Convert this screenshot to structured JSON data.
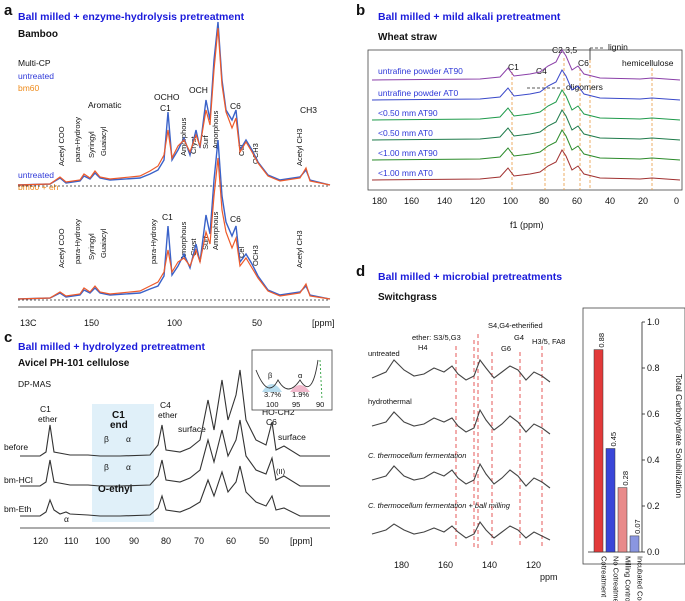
{
  "panels": {
    "a": {
      "letter": "a",
      "title": "Ball milled + enzyme-hydrolysis pretreatment",
      "subtitle": "Bamboo",
      "method": "Multi-CP",
      "legend1": [
        "untreated",
        "bm60"
      ],
      "legend2": [
        "untreated",
        "bm60 + eh"
      ],
      "peaks_top": [
        "Acetyl COO",
        "para-Hydroxy",
        "Syringyl",
        "Guaiacyl",
        "Aromatic",
        "OCHO",
        "C1",
        "Amorphous",
        "Cryst",
        "Surf",
        "Amorphous",
        "OCH",
        "C6",
        "Cel",
        "OCH3",
        "CH3",
        "Acetyl CH3"
      ],
      "peaks_bottom": [
        "Acetyl COO",
        "para-Hydroxy",
        "Syringyl",
        "Guaiacyl",
        "para-Hydroxy",
        "C1",
        "Amorphous",
        "Cryst",
        "Surf",
        "Amorphous",
        "C6",
        "Cel",
        "OCH3",
        "Acetyl CH3"
      ],
      "axis_prefix": "13C",
      "ticks": [
        "150",
        "100",
        "50"
      ],
      "unit": "[ppm]",
      "colors": {
        "untreated": "#3a62c9",
        "treated": "#ee5a2a"
      }
    },
    "b": {
      "letter": "b",
      "title": "Ball milled + mild alkali pretreatment",
      "subtitle": "Wheat straw",
      "series": [
        "untrafine powder AT90",
        "untrafine powder AT0",
        "<0.50 mm AT90",
        "<0.50 mm AT0",
        "<1.00 mm AT90",
        "<1.00 mm AT0"
      ],
      "peak_labels": [
        "C1",
        "C4",
        "C2,3,5",
        "C6",
        "lignin",
        "hemicellulose",
        "oligomers"
      ],
      "ticks": [
        "180",
        "160",
        "140",
        "120",
        "100",
        "80",
        "60",
        "40",
        "20",
        "0"
      ],
      "xlabel": "f1 (ppm)",
      "colors": [
        "#8a3fa8",
        "#3a48c9",
        "#1e9a4a",
        "#1e7a4a",
        "#2a8a2a",
        "#a03030"
      ]
    },
    "c": {
      "letter": "c",
      "title": "Ball milled + hydrolyzed pretreatment",
      "subtitle": "Avicel PH-101 cellulose",
      "method": "DP-MAS",
      "rows": [
        "before",
        "bm-HCl",
        "bm-Eth"
      ],
      "labels": [
        "C1",
        "ether",
        "C1",
        "end",
        "C4",
        "ether",
        "surface",
        "HO-CH2",
        "C6",
        "surface",
        "O-ethyl",
        "(II)"
      ],
      "greek": [
        "β",
        "α"
      ],
      "inset": {
        "pct_beta": "3.7%",
        "pct_alpha": "1.9%",
        "ticks": [
          "100",
          "95",
          "90"
        ]
      },
      "ticks": [
        "120",
        "110",
        "100",
        "90",
        "80",
        "70",
        "60",
        "50"
      ],
      "unit": "[ppm]"
    },
    "d": {
      "letter": "d",
      "title": "Ball milled + microbial pretreatments",
      "subtitle": "Switchgrass",
      "rows": [
        "untreated",
        "hydrothermal",
        "C. thermocellum fermentation",
        "C. thermocellum fermentation + ball milling"
      ],
      "peak_labels": [
        "ether: S3/5,G3",
        "H4",
        "S4,G4-etherified",
        "G4",
        "G6",
        "H3/5, FA8"
      ],
      "ticks": [
        "180",
        "160",
        "140",
        "120"
      ],
      "xunit": "ppm"
    }
  },
  "chart_data": [
    {
      "type": "bar",
      "title": "Total Carbohydrate Solubilization",
      "categories": [
        "Cotreatment",
        "No Cotreatment",
        "Milling Control",
        "Incubated Control"
      ],
      "values": [
        0.88,
        0.45,
        0.28,
        0.07
      ],
      "value_labels": [
        "0.88",
        "0.45",
        "0.28",
        "0.07"
      ],
      "colors": [
        "#e23a3a",
        "#3a46d8",
        "#e88a8a",
        "#8a96e0"
      ],
      "ylabel": "Total Carbohydrate Solubilization",
      "yticks": [
        "0.0",
        "0.2",
        "0.4",
        "0.6",
        "0.8",
        "1.0"
      ],
      "ylim": [
        0,
        1.0
      ]
    }
  ]
}
